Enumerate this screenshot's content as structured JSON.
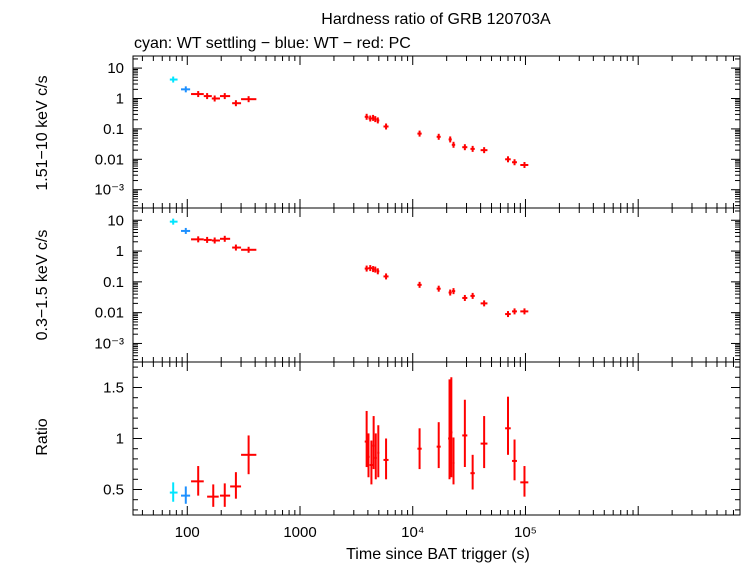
{
  "chart_data": {
    "type": "scatter",
    "title": "Hardness ratio of GRB 120703A",
    "subtitle": "cyan: WT settling − blue: WT − red: PC",
    "xlabel": "Time since BAT trigger (s)",
    "xscale": "log",
    "xlim": [
      33,
      8000000
    ],
    "x_tick_labels": [
      "100",
      "1000",
      "10⁴",
      "10⁵"
    ],
    "x_tick_values": [
      100,
      1000,
      10000,
      100000
    ],
    "colors": {
      "wt_settling": "#00e5ff",
      "wt": "#1e90ff",
      "pc": "#ff0000"
    },
    "panels": [
      {
        "name": "hard",
        "ylabel": "1.51−10 keV c/s",
        "yscale": "log",
        "ylim": [
          0.00025,
          25
        ],
        "y_tick_labels": [
          "10",
          "1",
          "0.1",
          "0.01",
          "10⁻³"
        ],
        "y_tick_values": [
          10,
          1,
          0.1,
          0.01,
          0.001
        ],
        "series": [
          {
            "mode": "wt_settling",
            "points": [
              {
                "x": 75,
                "xlo": 70,
                "xhi": 82,
                "y": 4.2
              }
            ]
          },
          {
            "mode": "wt",
            "points": [
              {
                "x": 97,
                "xlo": 88,
                "xhi": 106,
                "y": 2.0
              }
            ]
          },
          {
            "mode": "pc",
            "points": [
              {
                "x": 125,
                "xlo": 108,
                "xhi": 140,
                "y": 1.4
              },
              {
                "x": 150,
                "xlo": 140,
                "xhi": 165,
                "y": 1.2
              },
              {
                "x": 175,
                "xlo": 165,
                "xhi": 195,
                "y": 1.0
              },
              {
                "x": 215,
                "xlo": 195,
                "xhi": 240,
                "y": 1.2
              },
              {
                "x": 270,
                "xlo": 250,
                "xhi": 300,
                "y": 0.7
              },
              {
                "x": 350,
                "xlo": 300,
                "xhi": 410,
                "y": 0.95
              },
              {
                "x": 3900,
                "xlo": 3750,
                "xhi": 4050,
                "y": 0.25
              },
              {
                "x": 4200,
                "xlo": 4050,
                "xhi": 4350,
                "y": 0.22
              },
              {
                "x": 4450,
                "xlo": 4350,
                "xhi": 4550,
                "y": 0.23
              },
              {
                "x": 4650,
                "xlo": 4550,
                "xhi": 4780,
                "y": 0.21
              },
              {
                "x": 4900,
                "xlo": 4780,
                "xhi": 5050,
                "y": 0.19
              },
              {
                "x": 5800,
                "xlo": 5500,
                "xhi": 6100,
                "y": 0.12
              },
              {
                "x": 11500,
                "xlo": 11000,
                "xhi": 12000,
                "y": 0.07
              },
              {
                "x": 17000,
                "xlo": 16300,
                "xhi": 17700,
                "y": 0.055
              },
              {
                "x": 21500,
                "xlo": 20800,
                "xhi": 22200,
                "y": 0.045
              },
              {
                "x": 23000,
                "xlo": 22200,
                "xhi": 23800,
                "y": 0.03
              },
              {
                "x": 29000,
                "xlo": 27500,
                "xhi": 30500,
                "y": 0.025
              },
              {
                "x": 34000,
                "xlo": 32500,
                "xhi": 35500,
                "y": 0.022
              },
              {
                "x": 43000,
                "xlo": 40000,
                "xhi": 46000,
                "y": 0.02
              },
              {
                "x": 70000,
                "xlo": 66000,
                "xhi": 74000,
                "y": 0.01
              },
              {
                "x": 80000,
                "xlo": 76000,
                "xhi": 84000,
                "y": 0.008
              },
              {
                "x": 98000,
                "xlo": 90000,
                "xhi": 106000,
                "y": 0.0065
              }
            ]
          }
        ]
      },
      {
        "name": "soft",
        "ylabel": "0.3−1.5 keV c/s",
        "yscale": "log",
        "ylim": [
          0.00025,
          25
        ],
        "y_tick_labels": [
          "10",
          "1",
          "0.1",
          "0.01",
          "10⁻³"
        ],
        "y_tick_values": [
          10,
          1,
          0.1,
          0.01,
          0.001
        ],
        "series": [
          {
            "mode": "wt_settling",
            "points": [
              {
                "x": 75,
                "xlo": 70,
                "xhi": 82,
                "y": 9.0
              }
            ]
          },
          {
            "mode": "wt",
            "points": [
              {
                "x": 97,
                "xlo": 88,
                "xhi": 106,
                "y": 4.5
              }
            ]
          },
          {
            "mode": "pc",
            "points": [
              {
                "x": 125,
                "xlo": 108,
                "xhi": 140,
                "y": 2.4
              },
              {
                "x": 150,
                "xlo": 140,
                "xhi": 165,
                "y": 2.3
              },
              {
                "x": 175,
                "xlo": 165,
                "xhi": 195,
                "y": 2.2
              },
              {
                "x": 215,
                "xlo": 195,
                "xhi": 240,
                "y": 2.5
              },
              {
                "x": 270,
                "xlo": 250,
                "xhi": 300,
                "y": 1.3
              },
              {
                "x": 350,
                "xlo": 300,
                "xhi": 410,
                "y": 1.1
              },
              {
                "x": 3900,
                "xlo": 3750,
                "xhi": 4050,
                "y": 0.27
              },
              {
                "x": 4200,
                "xlo": 4050,
                "xhi": 4350,
                "y": 0.28
              },
              {
                "x": 4450,
                "xlo": 4350,
                "xhi": 4550,
                "y": 0.26
              },
              {
                "x": 4650,
                "xlo": 4550,
                "xhi": 4780,
                "y": 0.25
              },
              {
                "x": 4900,
                "xlo": 4780,
                "xhi": 5050,
                "y": 0.22
              },
              {
                "x": 5800,
                "xlo": 5500,
                "xhi": 6100,
                "y": 0.15
              },
              {
                "x": 11500,
                "xlo": 11000,
                "xhi": 12000,
                "y": 0.08
              },
              {
                "x": 17000,
                "xlo": 16300,
                "xhi": 17700,
                "y": 0.06
              },
              {
                "x": 21500,
                "xlo": 20800,
                "xhi": 22200,
                "y": 0.045
              },
              {
                "x": 23000,
                "xlo": 22200,
                "xhi": 23800,
                "y": 0.05
              },
              {
                "x": 29000,
                "xlo": 27500,
                "xhi": 30500,
                "y": 0.03
              },
              {
                "x": 34000,
                "xlo": 32500,
                "xhi": 35500,
                "y": 0.035
              },
              {
                "x": 43000,
                "xlo": 40000,
                "xhi": 46000,
                "y": 0.02
              },
              {
                "x": 70000,
                "xlo": 66000,
                "xhi": 74000,
                "y": 0.009
              },
              {
                "x": 80000,
                "xlo": 76000,
                "xhi": 84000,
                "y": 0.011
              },
              {
                "x": 98000,
                "xlo": 90000,
                "xhi": 106000,
                "y": 0.011
              }
            ]
          }
        ]
      },
      {
        "name": "ratio",
        "ylabel": "Ratio",
        "yscale": "linear",
        "ylim": [
          0.25,
          1.75
        ],
        "y_tick_labels": [
          "1.5",
          "1",
          "0.5"
        ],
        "y_tick_values": [
          1.5,
          1,
          0.5
        ],
        "series": [
          {
            "mode": "wt_settling",
            "points": [
              {
                "x": 75,
                "xlo": 70,
                "xhi": 82,
                "y": 0.47,
                "ylo": 0.38,
                "yhi": 0.57
              }
            ]
          },
          {
            "mode": "wt",
            "points": [
              {
                "x": 97,
                "xlo": 88,
                "xhi": 106,
                "y": 0.44,
                "ylo": 0.36,
                "yhi": 0.53
              }
            ]
          },
          {
            "mode": "pc",
            "points": [
              {
                "x": 125,
                "xlo": 108,
                "xhi": 140,
                "y": 0.58,
                "ylo": 0.44,
                "yhi": 0.73
              },
              {
                "x": 170,
                "xlo": 150,
                "xhi": 190,
                "y": 0.43,
                "ylo": 0.33,
                "yhi": 0.55
              },
              {
                "x": 215,
                "xlo": 195,
                "xhi": 240,
                "y": 0.44,
                "ylo": 0.33,
                "yhi": 0.56
              },
              {
                "x": 270,
                "xlo": 240,
                "xhi": 300,
                "y": 0.53,
                "ylo": 0.41,
                "yhi": 0.67
              },
              {
                "x": 350,
                "xlo": 300,
                "xhi": 410,
                "y": 0.84,
                "ylo": 0.65,
                "yhi": 1.03
              },
              {
                "x": 3900,
                "xlo": 3750,
                "xhi": 4050,
                "y": 0.97,
                "ylo": 0.72,
                "yhi": 1.27
              },
              {
                "x": 4050,
                "xlo": 3950,
                "xhi": 4150,
                "y": 0.82,
                "ylo": 0.62,
                "yhi": 1.05
              },
              {
                "x": 4300,
                "xlo": 4150,
                "xhi": 4450,
                "y": 0.74,
                "ylo": 0.55,
                "yhi": 0.98
              },
              {
                "x": 4500,
                "xlo": 4400,
                "xhi": 4600,
                "y": 0.93,
                "ylo": 0.7,
                "yhi": 1.22
              },
              {
                "x": 4700,
                "xlo": 4600,
                "xhi": 4800,
                "y": 0.81,
                "ylo": 0.6,
                "yhi": 1.05
              },
              {
                "x": 4950,
                "xlo": 4850,
                "xhi": 5050,
                "y": 0.86,
                "ylo": 0.62,
                "yhi": 1.13
              },
              {
                "x": 5800,
                "xlo": 5500,
                "xhi": 6100,
                "y": 0.79,
                "ylo": 0.6,
                "yhi": 1.0
              },
              {
                "x": 11500,
                "xlo": 11000,
                "xhi": 12000,
                "y": 0.9,
                "ylo": 0.7,
                "yhi": 1.1
              },
              {
                "x": 17000,
                "xlo": 16300,
                "xhi": 17700,
                "y": 0.92,
                "ylo": 0.71,
                "yhi": 1.16
              },
              {
                "x": 21200,
                "xlo": 20600,
                "xhi": 21800,
                "y": 1.0,
                "ylo": 0.6,
                "yhi": 1.58
              },
              {
                "x": 22000,
                "xlo": 21500,
                "xhi": 22500,
                "y": 1.06,
                "ylo": 0.62,
                "yhi": 1.6
              },
              {
                "x": 23000,
                "xlo": 22500,
                "xhi": 23500,
                "y": 0.76,
                "ylo": 0.55,
                "yhi": 1.01
              },
              {
                "x": 29000,
                "xlo": 27500,
                "xhi": 30500,
                "y": 1.03,
                "ylo": 0.72,
                "yhi": 1.38
              },
              {
                "x": 34000,
                "xlo": 32500,
                "xhi": 35500,
                "y": 0.66,
                "ylo": 0.5,
                "yhi": 0.84
              },
              {
                "x": 43000,
                "xlo": 40000,
                "xhi": 46000,
                "y": 0.95,
                "ylo": 0.71,
                "yhi": 1.22
              },
              {
                "x": 70000,
                "xlo": 66000,
                "xhi": 74000,
                "y": 1.1,
                "ylo": 0.84,
                "yhi": 1.41
              },
              {
                "x": 80000,
                "xlo": 76000,
                "xhi": 84000,
                "y": 0.78,
                "ylo": 0.59,
                "yhi": 0.99
              },
              {
                "x": 98000,
                "xlo": 90000,
                "xhi": 106000,
                "y": 0.57,
                "ylo": 0.43,
                "yhi": 0.73
              }
            ]
          }
        ]
      }
    ]
  }
}
